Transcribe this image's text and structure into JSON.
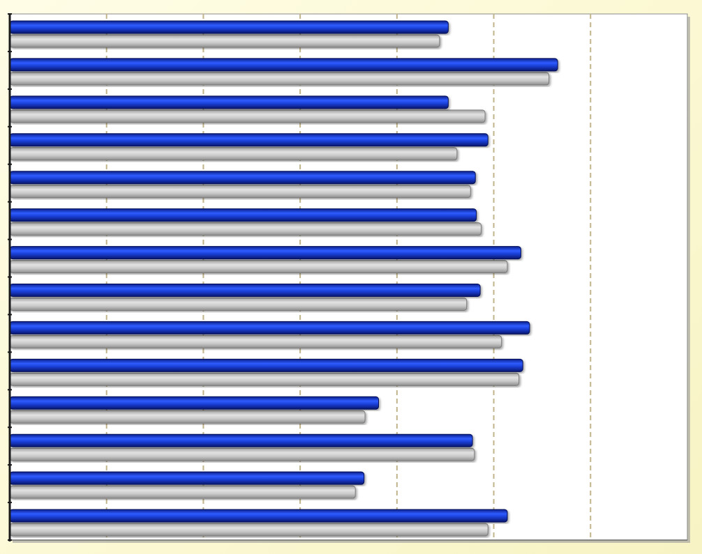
{
  "chart_data": {
    "type": "bar",
    "orientation": "horizontal",
    "categories": [
      "",
      "",
      "",
      "",
      "",
      "",
      "",
      "",
      "",
      "",
      "",
      "",
      "",
      ""
    ],
    "series": [
      {
        "values": [
          4.53,
          5.66,
          4.53,
          4.94,
          4.81,
          4.82,
          5.28,
          4.86,
          5.37,
          5.3,
          3.81,
          4.78,
          3.66,
          5.14
        ]
      },
      {
        "values": [
          4.44,
          5.57,
          4.91,
          4.62,
          4.76,
          4.87,
          5.14,
          4.72,
          5.08,
          5.26,
          3.67,
          4.8,
          3.57,
          4.94
        ]
      }
    ],
    "xlim": [
      0,
      7
    ],
    "grid": "vertical-dashed",
    "legend": "none",
    "colors": {
      "series_front": "#1a3fd6",
      "series_back": "#c4c4c4",
      "grid": "#c2b48a",
      "plot_bg": "#ffffff",
      "page_bg": "#fbf8d2"
    }
  }
}
